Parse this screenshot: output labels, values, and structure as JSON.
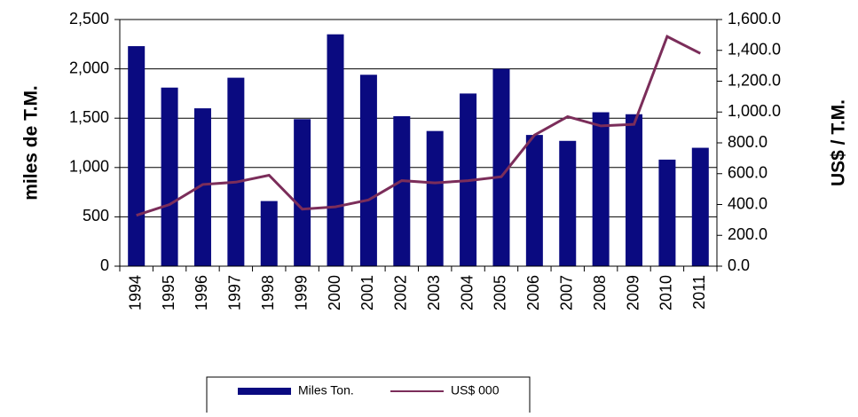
{
  "chart_data": {
    "type": "bar_line",
    "y_label": "miles de T.M.",
    "y2_label": "US$ / T.M.",
    "categories": [
      "1994",
      "1995",
      "1996",
      "1997",
      "1998",
      "1999",
      "2000",
      "2001",
      "2002",
      "2003",
      "2004",
      "2005",
      "2006",
      "2007",
      "2008",
      "2009",
      "2010",
      "2011"
    ],
    "series": [
      {
        "name": "Miles Ton.",
        "type": "bar",
        "color": "#0a0a80",
        "values": [
          2230,
          1810,
          1600,
          1910,
          660,
          1490,
          2350,
          1940,
          1520,
          1370,
          1750,
          2000,
          1330,
          1270,
          1560,
          1540,
          1080,
          1200
        ]
      },
      {
        "name": "US$ 000",
        "type": "line",
        "axis": "y2",
        "color": "#7b2d5a",
        "values": [
          330,
          400,
          530,
          545,
          590,
          370,
          385,
          430,
          555,
          540,
          555,
          580,
          850,
          970,
          910,
          920,
          1490,
          1380
        ]
      }
    ],
    "ylim": [
      0,
      2500
    ],
    "yticks": [
      0,
      500,
      {
        "value": 1000,
        "label": "1,000"
      },
      {
        "value": 1500,
        "label": "1,500"
      },
      {
        "value": 2000,
        "label": "2,000"
      },
      {
        "value": 2500,
        "label": "2,500"
      }
    ],
    "y2lim": [
      0,
      1600
    ],
    "y2ticks": [
      {
        "value": 0,
        "label": "0.0"
      },
      {
        "value": 200,
        "label": "200.0"
      },
      {
        "value": 400,
        "label": "400.0"
      },
      {
        "value": 600,
        "label": "600.0"
      },
      {
        "value": 800,
        "label": "800.0"
      },
      {
        "value": 1000,
        "label": "1,000.0"
      },
      {
        "value": 1200,
        "label": "1,200.0"
      },
      {
        "value": 1400,
        "label": "1,400.0"
      },
      {
        "value": 1600,
        "label": "1,600.0"
      }
    ],
    "grid": true,
    "legend": "bottom"
  }
}
